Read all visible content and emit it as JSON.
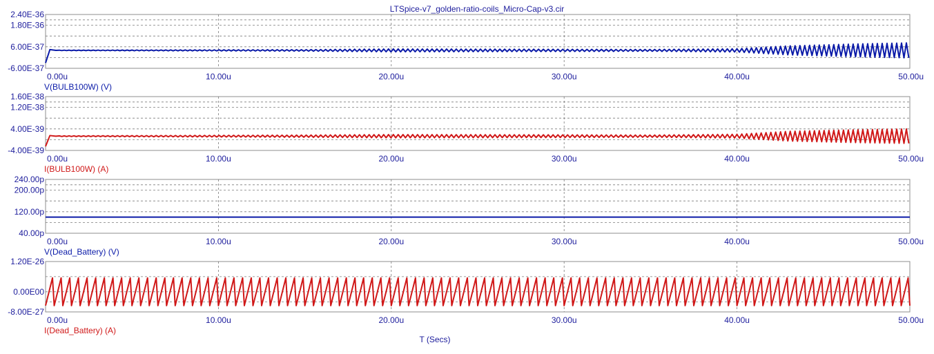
{
  "title": "LTSpice-v7_golden-ratio-coils_Micro-Cap-v3.cir",
  "xlabel": "T (Secs)",
  "x_tick_labels": [
    "0.00u",
    "10.00u",
    "20.00u",
    "30.00u",
    "40.00u",
    "50.00u"
  ],
  "chart_data": [
    {
      "type": "line",
      "label": "V(BULB100W) (V)",
      "color": "#0a1aa8",
      "y_tick_labels": [
        "2.40E-36",
        "1.80E-36",
        "6.00E-37",
        "-6.00E-37"
      ],
      "y_ticks": [
        2.4e-36,
        1.8e-36,
        6e-37,
        -6e-37
      ],
      "ylim": [
        -6e-37,
        2.4e-36
      ],
      "xlim": [
        0,
        50
      ],
      "x_unit": "u",
      "grid": true,
      "waveform": {
        "kind": "oscillation",
        "offset": 4e-37,
        "startup_from": -3e-37,
        "period": 0.28,
        "envelope": [
          [
            0,
            1e-38
          ],
          [
            5,
            2e-38
          ],
          [
            15,
            4e-38
          ],
          [
            20,
            8e-38
          ],
          [
            30,
            6e-38
          ],
          [
            35,
            5e-38
          ],
          [
            40,
            9e-38
          ],
          [
            43,
            2.5e-37
          ],
          [
            47,
            3.6e-37
          ],
          [
            50,
            4.2e-37
          ]
        ]
      }
    },
    {
      "type": "line",
      "label": "I(BULB100W) (A)",
      "color": "#d01818",
      "y_tick_labels": [
        "1.60E-38",
        "1.20E-38",
        "4.00E-39",
        "-4.00E-39"
      ],
      "y_ticks": [
        1.6e-38,
        1.2e-38,
        4e-39,
        -4e-39
      ],
      "ylim": [
        -4e-39,
        1.6e-38
      ],
      "xlim": [
        0,
        50
      ],
      "x_unit": "u",
      "grid": true,
      "waveform": {
        "kind": "oscillation",
        "offset": 1.3e-39,
        "startup_from": -2.5e-39,
        "period": 0.28,
        "envelope": [
          [
            0,
            1e-40
          ],
          [
            5,
            2e-40
          ],
          [
            15,
            4e-40
          ],
          [
            20,
            6e-40
          ],
          [
            30,
            5e-40
          ],
          [
            35,
            4e-40
          ],
          [
            40,
            7e-40
          ],
          [
            43,
            1.8e-39
          ],
          [
            47,
            2.4e-39
          ],
          [
            50,
            2.7e-39
          ]
        ]
      }
    },
    {
      "type": "line",
      "label": "V(Dead_Battery) (V)",
      "color": "#0a1aa8",
      "y_tick_labels": [
        "240.00p",
        "200.00p",
        "120.00p",
        "40.00p"
      ],
      "y_ticks": [
        240,
        200,
        120,
        40
      ],
      "ylim": [
        40,
        240
      ],
      "xlim": [
        0,
        50
      ],
      "x_unit": "u",
      "y_unit": "p",
      "grid": true,
      "waveform": {
        "kind": "constant",
        "value": 100
      }
    },
    {
      "type": "line",
      "label": "I(Dead_Battery) (A)",
      "color": "#d01818",
      "y_tick_labels": [
        "1.20E-26",
        "0.00E00",
        "-8.00E-27"
      ],
      "y_ticks": [
        1.2e-26,
        0,
        -8e-27
      ],
      "ylim": [
        -8e-27,
        1.2e-26
      ],
      "xlim": [
        0,
        50
      ],
      "x_unit": "u",
      "grid": true,
      "waveform": {
        "kind": "sawtooth",
        "offset": 0,
        "amplitude": 5.5e-27,
        "period": 0.5,
        "rise_fraction": 0.8
      }
    }
  ]
}
